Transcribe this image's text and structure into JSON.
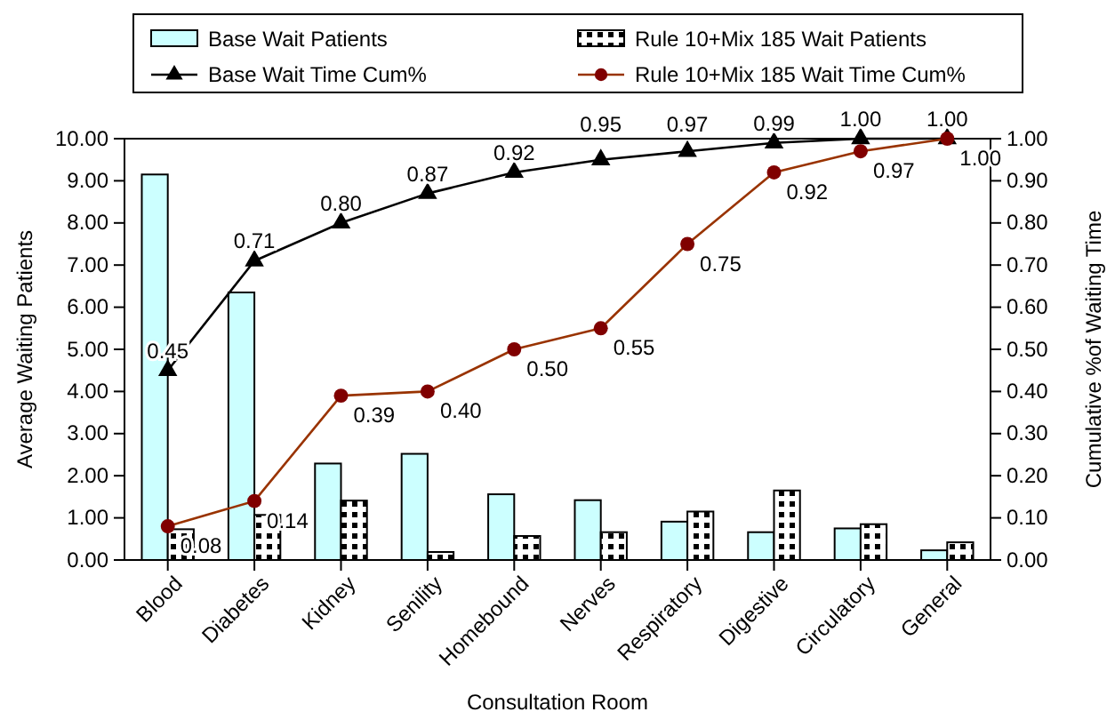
{
  "chart_data": {
    "type": "bar",
    "xlabel": "Consultation Room",
    "ylabel": "Average Waiting Patients",
    "y2label": "Cumulative %of Waiting Time",
    "categories": [
      "Blood",
      "Diabetes",
      "Kidney",
      "Senility",
      "Homebound",
      "Nerves",
      "Respiratory",
      "Digestive",
      "Circulatory",
      "General"
    ],
    "series": [
      {
        "name": "Base Wait Patients",
        "color": "#ccffff",
        "values": [
          9.15,
          6.35,
          2.29,
          2.52,
          1.56,
          1.42,
          0.91,
          0.66,
          0.75,
          0.23
        ]
      },
      {
        "name": "Rule 10+Mix 185 Wait Patients",
        "color": "#000000",
        "values": [
          0.73,
          1.07,
          1.41,
          0.19,
          0.57,
          0.66,
          1.15,
          1.65,
          0.85,
          0.42
        ]
      },
      {
        "name": "Base Wait Time Cum%",
        "type": "line",
        "axis": "y2",
        "color": "#000000",
        "marker": "triangle",
        "values": [
          0.45,
          0.71,
          0.8,
          0.87,
          0.92,
          0.95,
          0.97,
          0.99,
          1.0,
          1.0
        ],
        "value_labels": [
          "0.45",
          "0.71",
          "0.80",
          "0.87",
          "0.92",
          "0.95",
          "0.97",
          "0.99",
          "1.00",
          "1.00"
        ]
      },
      {
        "name": "Rule 10+Mix 185 Wait Time Cum%",
        "type": "line",
        "axis": "y2",
        "color": "#993300",
        "marker": "circle",
        "values": [
          0.08,
          0.14,
          0.39,
          0.4,
          0.5,
          0.55,
          0.75,
          0.92,
          0.97,
          1.0
        ],
        "value_labels": [
          "0.08",
          "0.14",
          "0.39",
          "0.40",
          "0.50",
          "0.55",
          "0.75",
          "0.92",
          "0.97",
          "1.00"
        ]
      }
    ],
    "ylim": [
      0,
      10
    ],
    "yticks": [
      {
        "value": 0,
        "label": "0.00"
      },
      {
        "value": 1,
        "label": "1.00"
      },
      {
        "value": 2,
        "label": "2.00"
      },
      {
        "value": 3,
        "label": "3.00"
      },
      {
        "value": 4,
        "label": "4.00"
      },
      {
        "value": 5,
        "label": "5.00"
      },
      {
        "value": 6,
        "label": "6.00"
      },
      {
        "value": 7,
        "label": "7.00"
      },
      {
        "value": 8,
        "label": "8.00"
      },
      {
        "value": 9,
        "label": "9.00"
      },
      {
        "value": 10,
        "label": "10.00"
      }
    ],
    "y2lim": [
      0,
      1
    ],
    "y2ticks": [
      {
        "value": 0,
        "label": "0.00"
      },
      {
        "value": 0.1,
        "label": "0.10"
      },
      {
        "value": 0.2,
        "label": "0.20"
      },
      {
        "value": 0.3,
        "label": "0.30"
      },
      {
        "value": 0.4,
        "label": "0.40"
      },
      {
        "value": 0.5,
        "label": "0.50"
      },
      {
        "value": 0.6,
        "label": "0.60"
      },
      {
        "value": 0.7,
        "label": "0.70"
      },
      {
        "value": 0.8,
        "label": "0.80"
      },
      {
        "value": 0.9,
        "label": "0.90"
      },
      {
        "value": 1,
        "label": "1.00"
      }
    ],
    "legend": "top",
    "grid": false
  }
}
